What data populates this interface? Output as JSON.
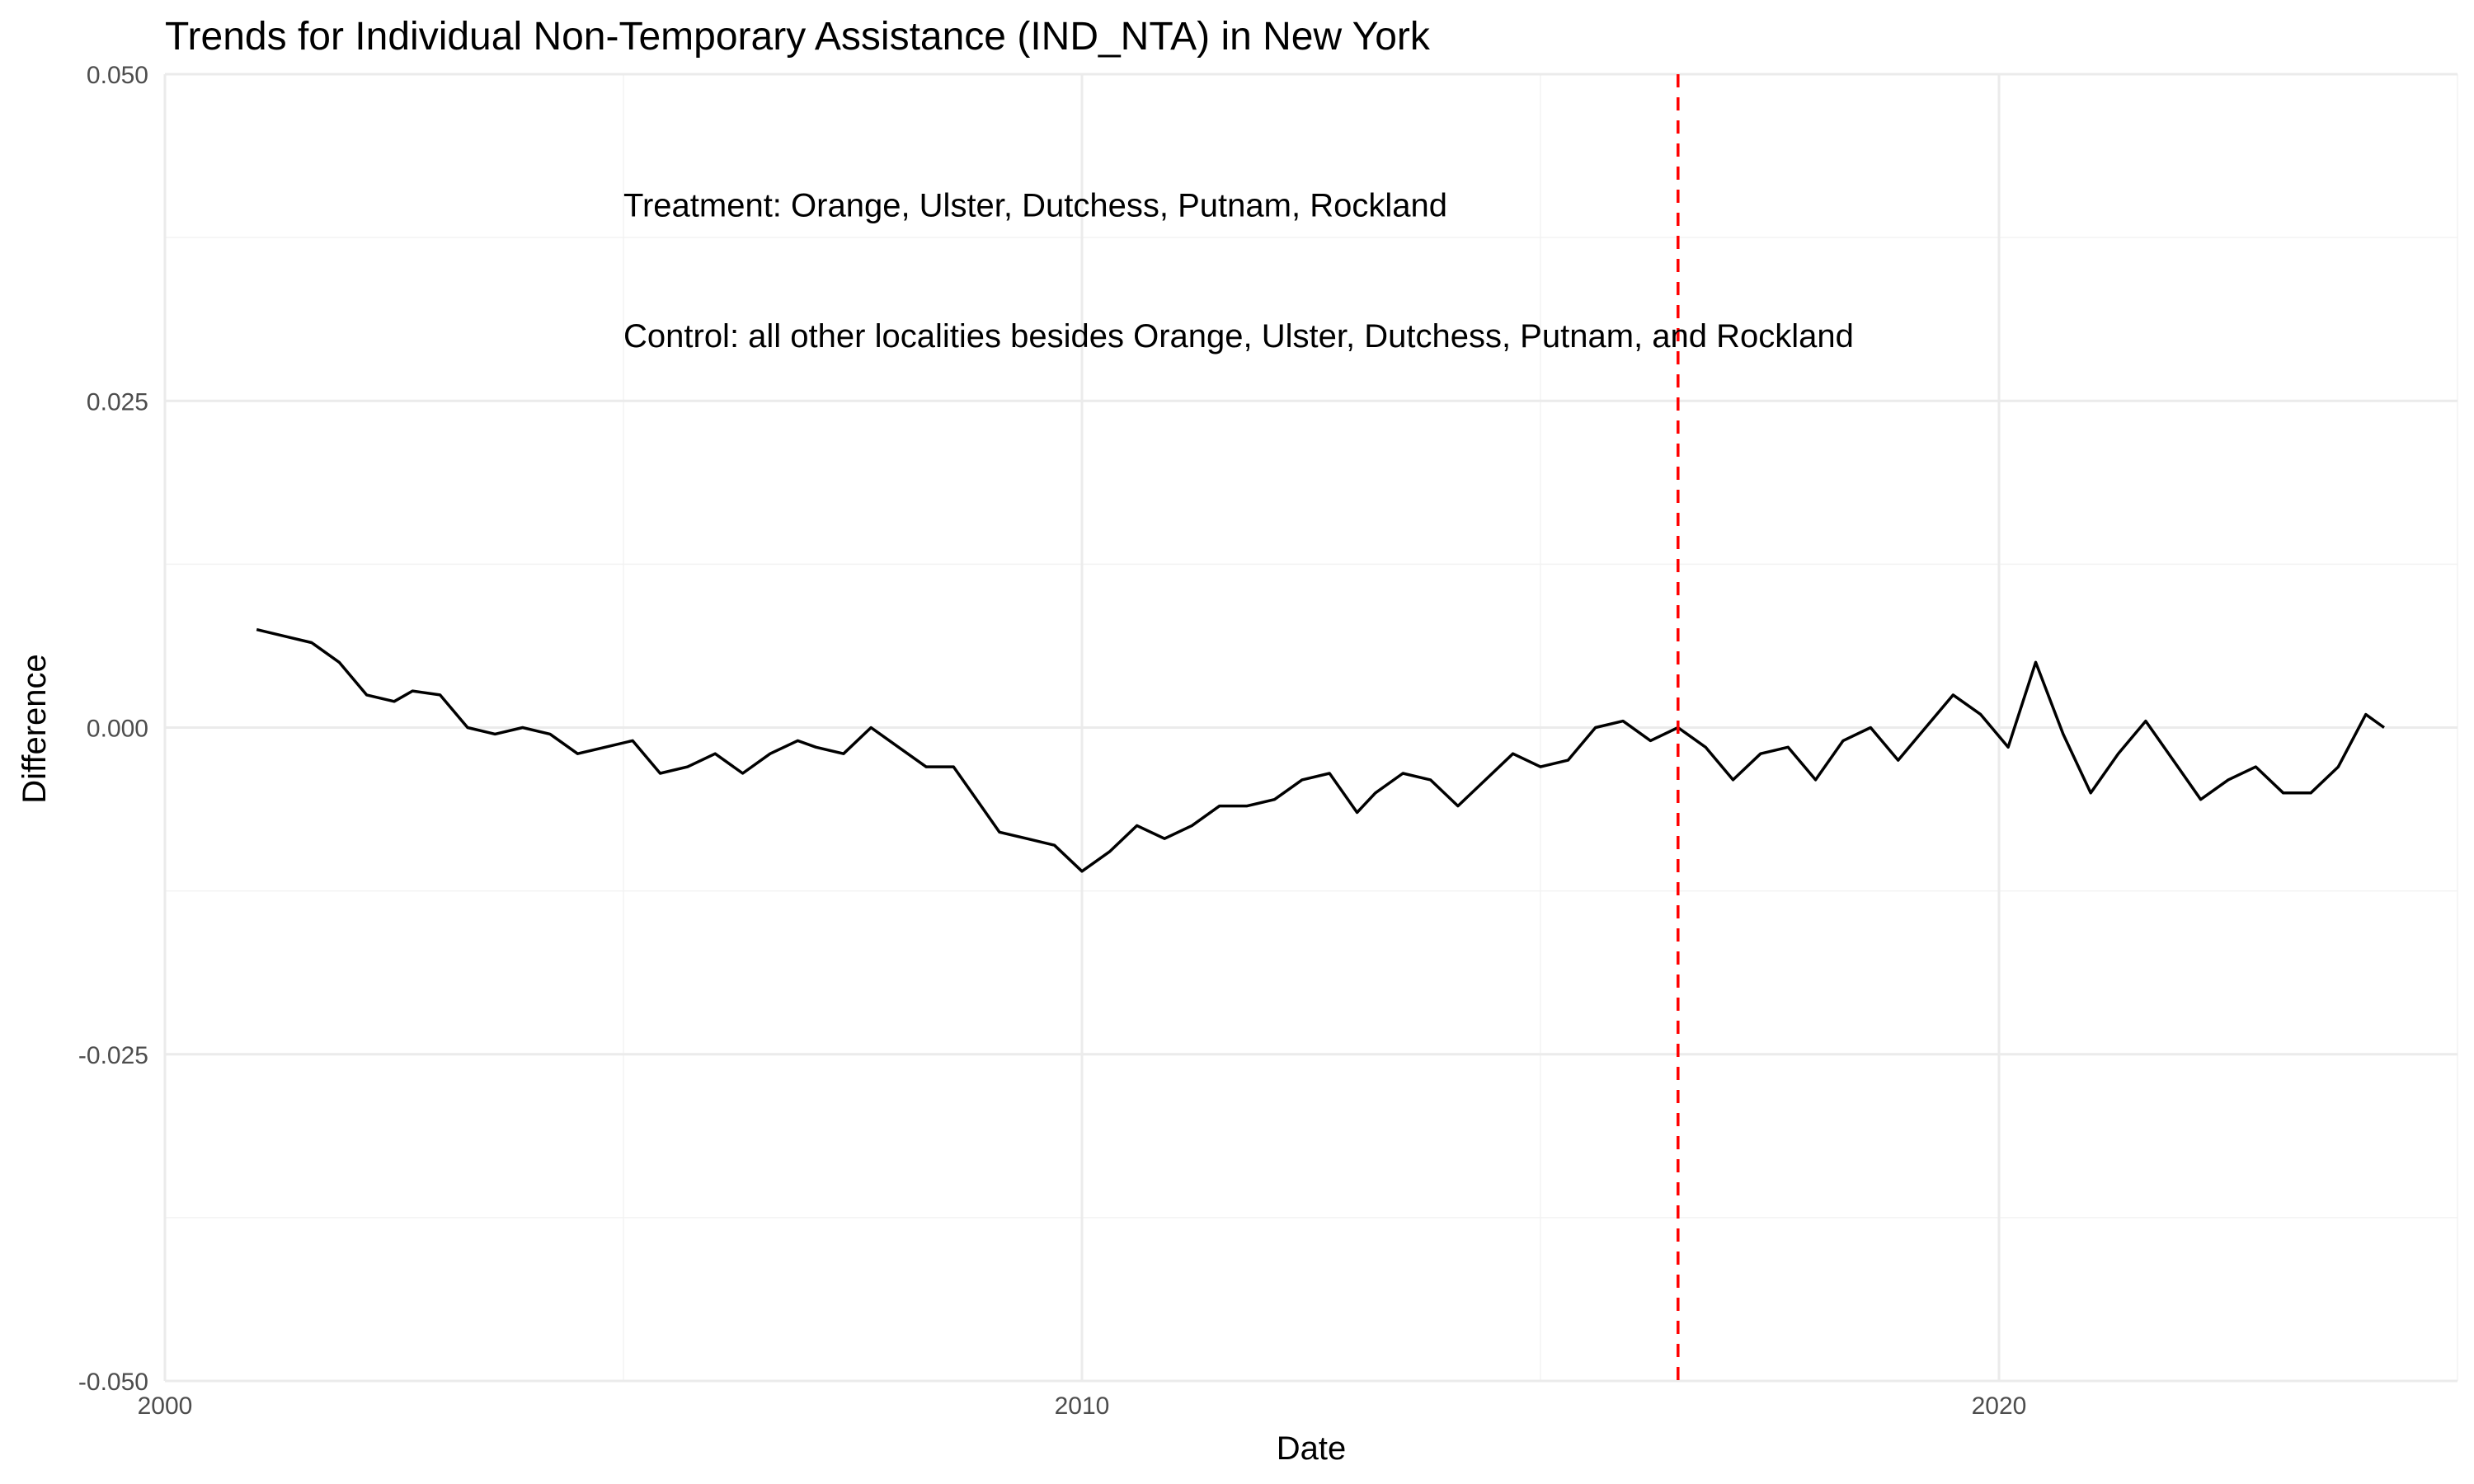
{
  "chart_data": {
    "type": "line",
    "title": "Trends for Individual Non-Temporary Assistance (IND_NTA) in New York",
    "xlabel": "Date",
    "ylabel": "Difference",
    "xlim": [
      2000,
      2025
    ],
    "ylim": [
      -0.05,
      0.05
    ],
    "x_ticks": [
      2000,
      2010,
      2020
    ],
    "x_tick_labels": [
      "2000",
      "2010",
      "2020"
    ],
    "y_ticks": [
      -0.05,
      -0.025,
      0,
      0.025,
      0.05
    ],
    "y_tick_labels": [
      "-0.050",
      "-0.025",
      "0.000",
      "0.025",
      "0.050"
    ],
    "grid": true,
    "legend": "none",
    "reference_line": {
      "axis": "x",
      "x": 2016.5,
      "color": "#ff0000",
      "style": "dashed"
    },
    "annotations": [
      {
        "text": "Treatment: Orange, Ulster, Dutchess, Putnam, Rockland",
        "x": 2005,
        "y": 0.04
      },
      {
        "text": "Control: all other localities besides Orange, Ulster, Dutchess, Putnam, and Rockland",
        "x": 2005,
        "y": 0.03
      }
    ],
    "series": [
      {
        "color": "#000000",
        "x": [
          2001.0,
          2001.3,
          2001.6,
          2001.9,
          2002.2,
          2002.5,
          2002.7,
          2003.0,
          2003.3,
          2003.6,
          2003.9,
          2004.2,
          2004.5,
          2004.8,
          2005.1,
          2005.4,
          2005.7,
          2006.0,
          2006.3,
          2006.6,
          2006.9,
          2007.1,
          2007.4,
          2007.7,
          2008.0,
          2008.3,
          2008.6,
          2008.8,
          2009.1,
          2009.4,
          2009.7,
          2010.0,
          2010.3,
          2010.6,
          2010.9,
          2011.2,
          2011.5,
          2011.8,
          2012.1,
          2012.4,
          2012.7,
          2013.0,
          2013.2,
          2013.5,
          2013.8,
          2014.1,
          2014.4,
          2014.7,
          2015.0,
          2015.3,
          2015.6,
          2015.9,
          2016.2,
          2016.5,
          2016.8,
          2017.1,
          2017.4,
          2017.7,
          2018.0,
          2018.3,
          2018.6,
          2018.9,
          2019.2,
          2019.5,
          2019.8,
          2020.1,
          2020.4,
          2020.7,
          2021.0,
          2021.3,
          2021.6,
          2021.9,
          2022.2,
          2022.5,
          2022.8,
          2023.1,
          2023.4,
          2023.7,
          2024.0,
          2024.2
        ],
        "y": [
          0.0075,
          0.007,
          0.0065,
          0.005,
          0.0025,
          0.002,
          0.0028,
          0.0025,
          0.0,
          -0.0005,
          0.0,
          -0.0005,
          -0.002,
          -0.0015,
          -0.001,
          -0.0035,
          -0.003,
          -0.002,
          -0.0035,
          -0.002,
          -0.001,
          -0.0015,
          -0.002,
          0.0,
          -0.0015,
          -0.003,
          -0.003,
          -0.005,
          -0.008,
          -0.0085,
          -0.009,
          -0.011,
          -0.0095,
          -0.0075,
          -0.0085,
          -0.0075,
          -0.006,
          -0.006,
          -0.0055,
          -0.004,
          -0.0035,
          -0.0065,
          -0.005,
          -0.0035,
          -0.004,
          -0.006,
          -0.004,
          -0.002,
          -0.003,
          -0.0025,
          0.0,
          0.0005,
          -0.001,
          0.0,
          -0.0015,
          -0.004,
          -0.002,
          -0.0015,
          -0.004,
          -0.001,
          0.0,
          -0.0025,
          0.0,
          0.0025,
          0.001,
          -0.0015,
          0.005,
          -0.0005,
          -0.005,
          -0.002,
          0.0005,
          -0.0025,
          -0.0055,
          -0.004,
          -0.003,
          -0.005,
          -0.005,
          -0.003,
          0.001,
          0.0
        ]
      }
    ]
  }
}
